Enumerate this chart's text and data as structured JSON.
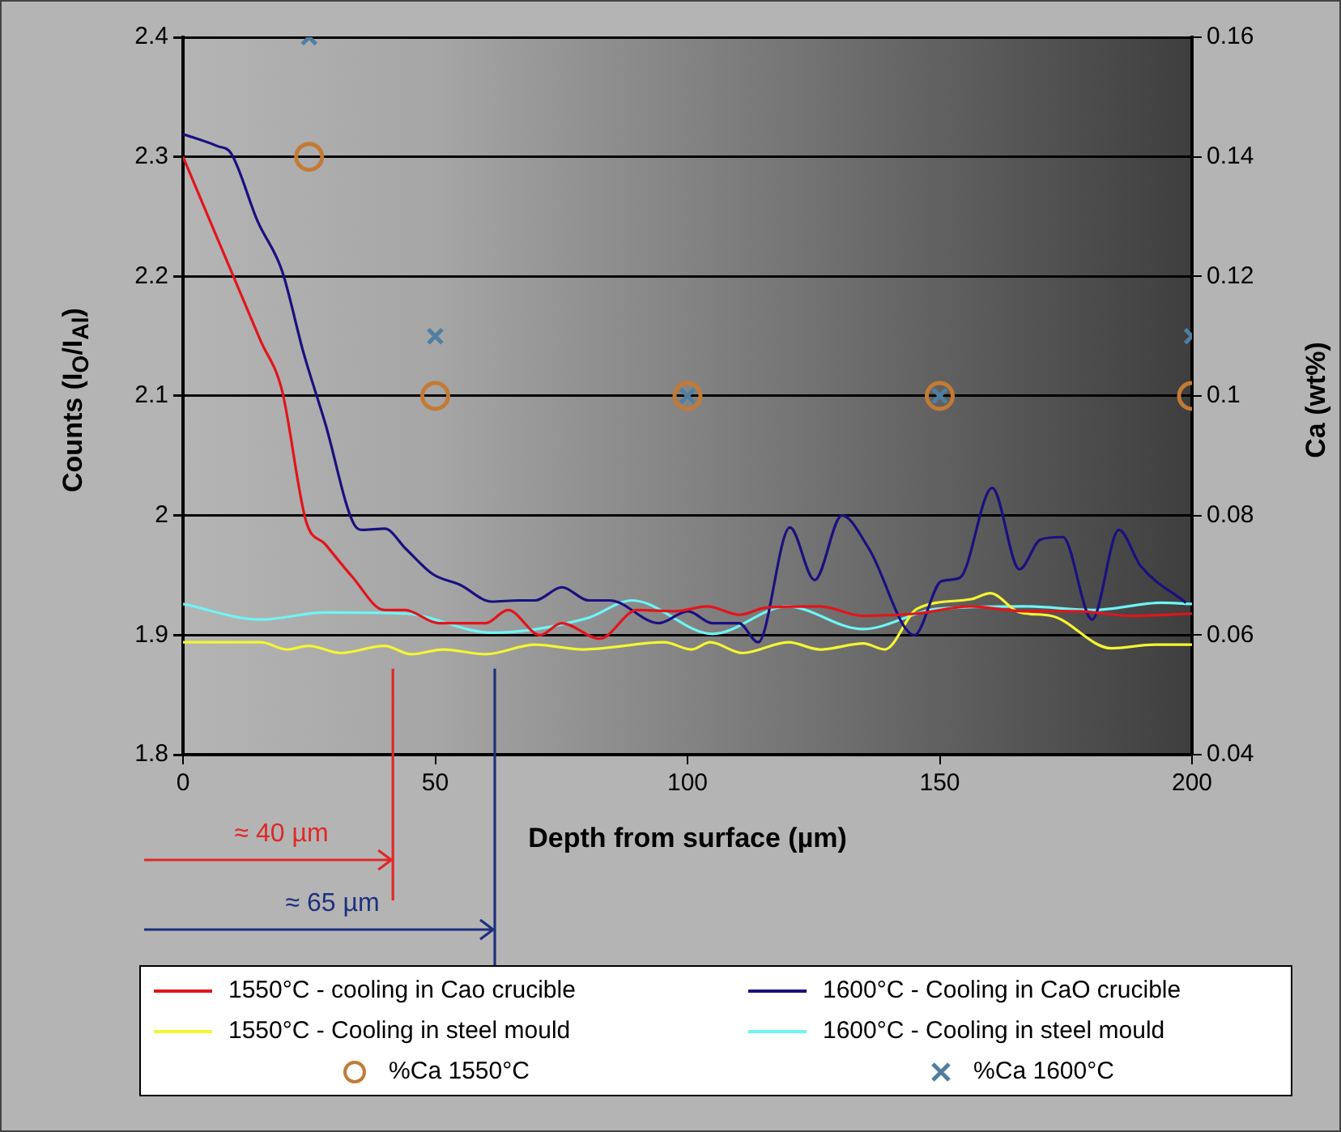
{
  "chart_data": {
    "type": "line",
    "xlabel": "Depth from surface (µm)",
    "ylabel": "Counts (I$_{O}$/I$_{Al}$)",
    "y2label": "Ca (wt%)",
    "xlim": [
      0,
      200
    ],
    "xticks": [
      0,
      50,
      100,
      150,
      200
    ],
    "ylim": [
      1.8,
      2.4
    ],
    "yticks": [
      1.8,
      1.9,
      2,
      2.1,
      2.2,
      2.3,
      2.4
    ],
    "y2lim": [
      0.04,
      0.16
    ],
    "y2ticks": [
      0.04,
      0.06,
      0.08,
      0.1,
      0.12,
      0.14,
      0.16
    ],
    "grid": "y",
    "legend": "bottom",
    "marker": "none",
    "line_style": "solid",
    "series": [
      {
        "name": "1550°C - cooling in Cao crucible",
        "color": "#e3141b",
        "x": [
          0,
          15.4,
          19.6,
          24.4,
          28.2,
          33.5,
          39.9,
          44,
          50.6,
          60,
          64.4,
          70.8,
          75,
          82.6,
          90,
          97.6,
          103.9,
          110.3,
          115.6,
          126.3,
          134.8,
          145.5,
          156,
          166.8,
          177.4,
          188,
          200
        ],
        "values": [
          2.3,
          2.146,
          2.105,
          1.995,
          1.976,
          1.949,
          1.921,
          1.921,
          1.91,
          1.91,
          1.921,
          1.9,
          1.91,
          1.897,
          1.921,
          1.92,
          1.924,
          1.917,
          1.923,
          1.924,
          1.916,
          1.918,
          1.924,
          1.92,
          1.92,
          1.916,
          1.918
        ]
      },
      {
        "name": "1600°C - Cooling in CaO crucible",
        "color": "#1a1080",
        "x": [
          0,
          6.8,
          9.5,
          14.8,
          19.6,
          23.9,
          28.2,
          34,
          35.7,
          40,
          44.2,
          49.5,
          54.9,
          61.2,
          66.5,
          69.8,
          75.1,
          80.4,
          84.6,
          94.3,
          100.1,
          104.9,
          110.2,
          114,
          120.3,
          125.2,
          130.6,
          136,
          145,
          150.3,
          154,
          160.4,
          165.8,
          170,
          174.4,
          180.2,
          185.5,
          189.8,
          198.8
        ],
        "values": [
          2.319,
          2.309,
          2.303,
          2.246,
          2.205,
          2.136,
          2.077,
          1.992,
          1.988,
          1.989,
          1.972,
          1.951,
          1.942,
          1.928,
          1.929,
          1.929,
          1.94,
          1.929,
          1.929,
          1.91,
          1.92,
          1.91,
          1.91,
          1.894,
          1.99,
          1.946,
          2,
          1.972,
          1.9,
          1.945,
          1.948,
          2.023,
          1.955,
          1.98,
          1.982,
          1.913,
          1.988,
          1.958,
          1.927
        ]
      },
      {
        "name": "1550°C - Cooling in steel mould",
        "color": "#f5f532",
        "x": [
          0,
          15.4,
          20.6,
          24.9,
          31.3,
          39.9,
          45.2,
          51.6,
          60,
          69.8,
          79.4,
          95.4,
          100.8,
          104.5,
          110.9,
          120,
          126.3,
          134.9,
          139.1,
          145.5,
          156.2,
          160,
          165.8,
          172.2,
          184,
          192.5,
          200
        ],
        "values": [
          1.894,
          1.894,
          1.888,
          1.891,
          1.885,
          1.891,
          1.884,
          1.888,
          1.884,
          1.892,
          1.888,
          1.894,
          1.888,
          1.894,
          1.885,
          1.894,
          1.888,
          1.893,
          1.888,
          1.922,
          1.93,
          1.935,
          1.919,
          1.916,
          1.889,
          1.892,
          1.892
        ]
      },
      {
        "name": "1600°C - Cooling in steel mould",
        "color": "#6ef5f5",
        "x": [
          0,
          15.4,
          28.2,
          44,
          61.2,
          80,
          89,
          105,
          119.7,
          134.7,
          149.6,
          166.8,
          180.5,
          194,
          200
        ],
        "values": [
          1.926,
          1.913,
          1.919,
          1.918,
          1.902,
          1.914,
          1.929,
          1.901,
          1.924,
          1.905,
          1.922,
          1.924,
          1.921,
          1.927,
          1.926
        ]
      },
      {
        "name": "%Ca 1550°C",
        "type": "scatter",
        "axis": "y2",
        "marker": "circle",
        "color": "#c47a35",
        "x": [
          25,
          50,
          100,
          150,
          200
        ],
        "values": [
          0.14,
          0.1,
          0.1,
          0.1,
          0.1
        ]
      },
      {
        "name": "%Ca 1600°C",
        "type": "scatter",
        "axis": "y2",
        "marker": "cross",
        "color": "#4f7fa0",
        "x": [
          25,
          50,
          100,
          150,
          200
        ],
        "values": [
          0.16,
          0.11,
          0.1,
          0.1,
          0.11
        ]
      }
    ],
    "ref_lines": [
      {
        "axis": "x",
        "value": 41.6,
        "label": "≈ 40 µm",
        "color": "#e02828"
      },
      {
        "axis": "x",
        "value": 61.8,
        "label": "≈ 65 µm",
        "color": "#1f2f7f"
      }
    ]
  }
}
